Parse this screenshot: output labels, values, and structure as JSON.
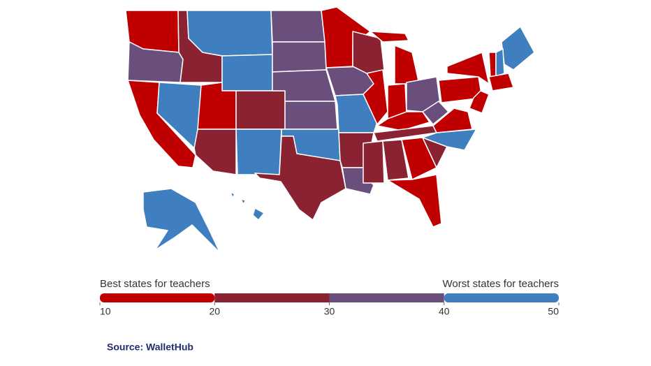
{
  "legend": {
    "left_label": "Best states for teachers",
    "right_label": "Worst states for teachers",
    "ticks": [
      10,
      20,
      30,
      40,
      50
    ],
    "colors": [
      "#c00000",
      "#8b2232",
      "#6a4e7c",
      "#3f7fbf"
    ]
  },
  "source": "Source: WalletHub"
}
